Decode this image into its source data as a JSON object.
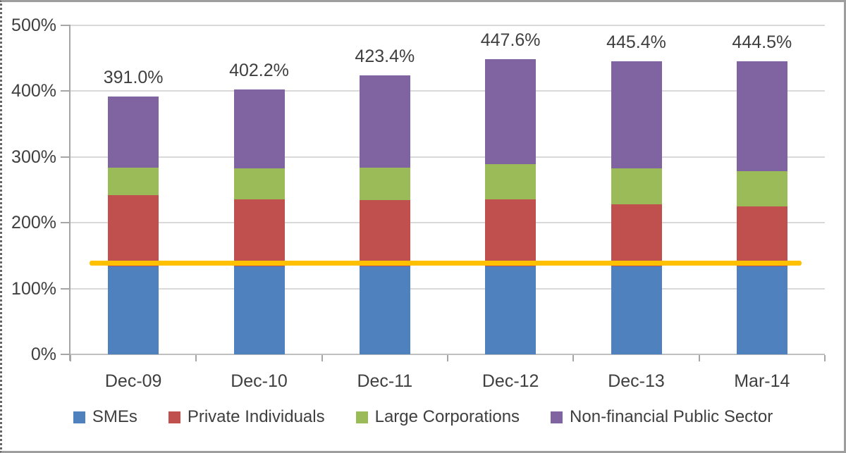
{
  "chart_data": {
    "type": "bar",
    "stacked": true,
    "title": "",
    "xlabel": "",
    "ylabel": "",
    "categories": [
      "Dec-09",
      "Dec-10",
      "Dec-11",
      "Dec-12",
      "Dec-13",
      "Mar-14"
    ],
    "series": [
      {
        "name": "SMEs",
        "color": "#4E81BD",
        "values": [
          134.0,
          134.0,
          134.0,
          134.0,
          133.5,
          133.5
        ]
      },
      {
        "name": "Private Individuals",
        "color": "#C0504D",
        "values": [
          107.3,
          101.0,
          100.0,
          101.0,
          94.5,
          91.0
        ]
      },
      {
        "name": "Large Corporations",
        "color": "#9BBB59",
        "values": [
          42.1,
          47.2,
          49.0,
          54.0,
          54.0,
          53.5
        ]
      },
      {
        "name": "Non-financial Public Sector",
        "color": "#8064A2",
        "values": [
          107.6,
          120.0,
          140.4,
          158.6,
          163.4,
          166.5
        ]
      }
    ],
    "totals_labels": [
      "391.0%",
      "402.2%",
      "423.4%",
      "447.6%",
      "445.4%",
      "444.5%"
    ],
    "y_axis": {
      "min": 0,
      "max": 500,
      "tick_step": 100,
      "tick_labels": [
        "0%",
        "100%",
        "200%",
        "300%",
        "400%",
        "500%"
      ],
      "grid": true
    },
    "reference_line": {
      "value": 138.3,
      "color": "#FFC000"
    },
    "legend_position": "bottom",
    "legend_entries": [
      "SMEs",
      "Private Individuals",
      "Large Corporations",
      "Non-financial Public Sector"
    ]
  },
  "style_colors": {
    "gridline": "#d9d9d9",
    "zero_line": "#bfbfbf",
    "axis": "#a6a6a6",
    "text": "#3f3f3f"
  }
}
